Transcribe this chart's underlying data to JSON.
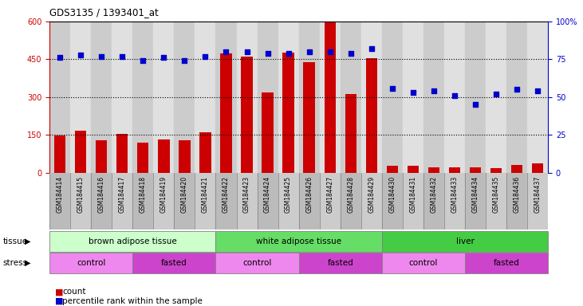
{
  "title": "GDS3135 / 1393401_at",
  "samples": [
    "GSM184414",
    "GSM184415",
    "GSM184416",
    "GSM184417",
    "GSM184418",
    "GSM184419",
    "GSM184420",
    "GSM184421",
    "GSM184422",
    "GSM184423",
    "GSM184424",
    "GSM184425",
    "GSM184426",
    "GSM184427",
    "GSM184428",
    "GSM184429",
    "GSM184430",
    "GSM184431",
    "GSM184432",
    "GSM184433",
    "GSM184434",
    "GSM184435",
    "GSM184436",
    "GSM184437"
  ],
  "counts": [
    148,
    168,
    130,
    155,
    120,
    132,
    128,
    162,
    472,
    460,
    320,
    475,
    440,
    600,
    312,
    455,
    28,
    28,
    22,
    22,
    22,
    18,
    30,
    38
  ],
  "percentiles": [
    76,
    78,
    77,
    77,
    74,
    76,
    74,
    77,
    80,
    80,
    79,
    79,
    80,
    80,
    79,
    82,
    56,
    53,
    54,
    51,
    45,
    52,
    55,
    54
  ],
  "ylim_left": [
    0,
    600
  ],
  "ylim_right": [
    0,
    100
  ],
  "yticks_left": [
    0,
    150,
    300,
    450,
    600
  ],
  "yticks_right": [
    0,
    25,
    50,
    75,
    100
  ],
  "bar_color": "#cc0000",
  "dot_color": "#0000cc",
  "tissue_groups": [
    {
      "label": "brown adipose tissue",
      "start": 0,
      "end": 7,
      "color": "#ccffcc"
    },
    {
      "label": "white adipose tissue",
      "start": 8,
      "end": 15,
      "color": "#66dd66"
    },
    {
      "label": "liver",
      "start": 16,
      "end": 23,
      "color": "#44cc44"
    }
  ],
  "stress_groups": [
    {
      "label": "control",
      "start": 0,
      "end": 3,
      "color": "#ee88ee"
    },
    {
      "label": "fasted",
      "start": 4,
      "end": 7,
      "color": "#cc44cc"
    },
    {
      "label": "control",
      "start": 8,
      "end": 11,
      "color": "#ee88ee"
    },
    {
      "label": "fasted",
      "start": 12,
      "end": 15,
      "color": "#cc44cc"
    },
    {
      "label": "control",
      "start": 16,
      "end": 19,
      "color": "#ee88ee"
    },
    {
      "label": "fasted",
      "start": 20,
      "end": 23,
      "color": "#cc44cc"
    }
  ],
  "left_axis_color": "#cc0000",
  "right_axis_color": "#0000cc",
  "legend_count_label": "count",
  "legend_pct_label": "percentile rank within the sample",
  "tissue_row_label": "tissue",
  "stress_row_label": "stress",
  "plot_bg": "#dddddd",
  "col_even_bg": "#cccccc",
  "col_odd_bg": "#e0e0e0"
}
